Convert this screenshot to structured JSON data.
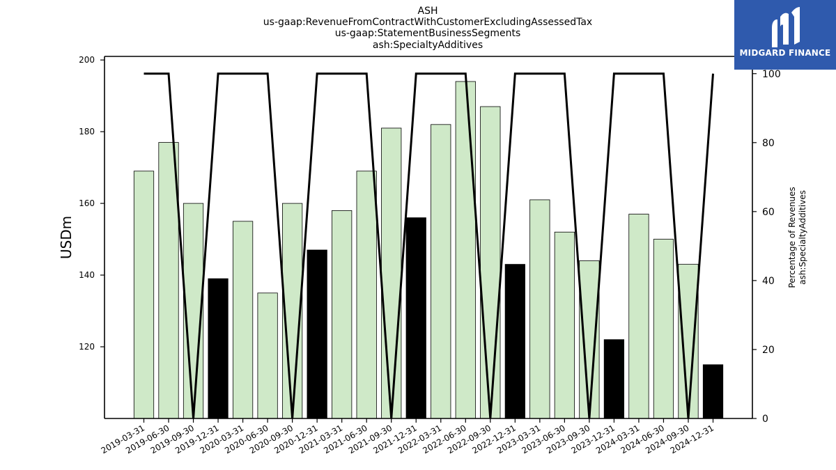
{
  "title_lines": [
    "ASH",
    "us-gaap:RevenueFromContractWithCustomerExcludingAssessedTax",
    "us-gaap:StatementBusinessSegments",
    "ash:SpecialtyAdditives"
  ],
  "logo": {
    "text": "MIDGARD FINANCE",
    "color": "#2f5aad"
  },
  "chart_data": {
    "type": "bar",
    "categories": [
      "2019-03-31",
      "2019-06-30",
      "2019-09-30",
      "2019-12-31",
      "2020-03-31",
      "2020-06-30",
      "2020-09-30",
      "2020-12-31",
      "2021-03-31",
      "2021-06-30",
      "2021-09-30",
      "2021-12-31",
      "2022-03-31",
      "2022-06-30",
      "2022-09-30",
      "2022-12-31",
      "2023-03-31",
      "2023-06-30",
      "2023-09-30",
      "2023-12-31",
      "2024-03-31",
      "2024-06-30",
      "2024-09-30",
      "2024-12-31"
    ],
    "values": [
      169,
      177,
      160,
      139,
      155,
      135,
      160,
      147,
      158,
      169,
      181,
      156,
      182,
      194,
      187,
      143,
      161,
      152,
      144,
      122,
      157,
      150,
      143,
      115
    ],
    "highlight": [
      false,
      false,
      false,
      true,
      false,
      false,
      false,
      true,
      false,
      false,
      false,
      true,
      false,
      false,
      false,
      true,
      false,
      false,
      false,
      true,
      false,
      false,
      false,
      true
    ],
    "bar_color": "#cfe9c8",
    "highlight_color": "#000000",
    "ylabel": "USDm",
    "ylim": [
      100,
      201
    ],
    "yticks": [
      120,
      140,
      160,
      180,
      200
    ],
    "line": {
      "values": [
        100,
        100,
        0,
        100,
        100,
        100,
        0,
        100,
        100,
        100,
        0,
        100,
        100,
        100,
        0,
        100,
        100,
        100,
        0,
        100,
        100,
        100,
        0,
        100
      ],
      "color": "#000000"
    },
    "y2label_lines": [
      "Percentage of Revenues",
      "ash:SpecialtyAdditives"
    ],
    "y2lim": [
      0,
      105
    ],
    "y2ticks": [
      0,
      20,
      40,
      60,
      80,
      100
    ],
    "grid": false
  }
}
